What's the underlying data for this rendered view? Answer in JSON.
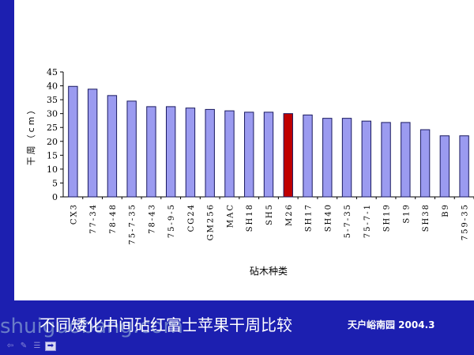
{
  "chart_data": {
    "type": "bar",
    "title": "",
    "xlabel": "砧木种类",
    "ylabel": "干周（cm）",
    "ylim": [
      0,
      45
    ],
    "yticks": [
      0,
      5,
      10,
      15,
      20,
      25,
      30,
      35,
      40,
      45
    ],
    "grid": false,
    "categories": [
      "CX3",
      "77-34",
      "78-48",
      "75-7-35",
      "78-43",
      "75-9-5",
      "CG24",
      "GM256",
      "MAC",
      "SH18",
      "SH5",
      "M26",
      "SH17",
      "SH40",
      "5-7-35",
      "75-7-1",
      "SH19",
      "S19",
      "SH38",
      "B9",
      "759-35"
    ],
    "values": [
      39.8,
      38.8,
      36.5,
      34.5,
      32.5,
      32.5,
      32.0,
      31.5,
      31.0,
      30.5,
      30.5,
      30.0,
      29.5,
      28.3,
      28.3,
      27.3,
      26.8,
      26.8,
      24.2,
      22.0,
      22.0
    ],
    "highlight_category": "M26",
    "colors": {
      "bar": "#9b9bf0",
      "bar_stroke": "#1a1a60",
      "highlight": "#c00000"
    }
  },
  "caption": "不同矮化中间砧红富士苹果干周比较",
  "caption_sub": "天户峪南园 2004.3",
  "watermark": "shuiguobang.com",
  "navigation": [
    "prev-icon",
    "pen-icon",
    "menu-icon",
    "next-icon"
  ]
}
